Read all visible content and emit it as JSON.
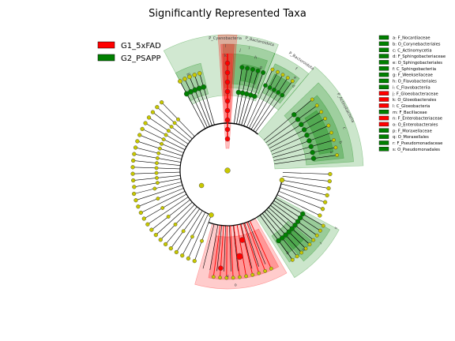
{
  "title": "Significantly Represented Taxa",
  "colors": {
    "red": "#ff0000",
    "green": "#008000",
    "neutral_node": "#c8c800",
    "branch": "#000000"
  },
  "group_legend": [
    {
      "label": "G1_5xFAD",
      "color": "#ff0000"
    },
    {
      "label": "G2_PSAPP",
      "color": "#008000"
    }
  ],
  "taxa_legend": [
    {
      "text": "a: F_Nocardiaceae",
      "color": "#008000"
    },
    {
      "text": "b: O_Corynebacteriales",
      "color": "#008000"
    },
    {
      "text": "c: C_Actinomycetia",
      "color": "#008000"
    },
    {
      "text": "d: F_Sphingobacteriaceae",
      "color": "#008000"
    },
    {
      "text": "e: O_Sphingobacteriales",
      "color": "#008000"
    },
    {
      "text": "f: C_Sphingobacteriia",
      "color": "#008000"
    },
    {
      "text": "g: F_Weeksellaceae",
      "color": "#008000"
    },
    {
      "text": "h: O_Flavobacteriales",
      "color": "#008000"
    },
    {
      "text": "i: C_Flavobacteriia",
      "color": "#008000"
    },
    {
      "text": "j: F_Gloeobacteraceae",
      "color": "#ff0000"
    },
    {
      "text": "k: O_Gloeobacterales",
      "color": "#ff0000"
    },
    {
      "text": "l: C_Gloeobacteria",
      "color": "#ff0000"
    },
    {
      "text": "m: F_Bacillaceae",
      "color": "#008000"
    },
    {
      "text": "n: F_Enterobacteriaceae",
      "color": "#ff0000"
    },
    {
      "text": "o: O_Enterobacterales",
      "color": "#ff0000"
    },
    {
      "text": "p: F_Moraxellaceae",
      "color": "#008000"
    },
    {
      "text": "q: O_Moraxellales",
      "color": "#008000"
    },
    {
      "text": "r: F_Pseudomonadaceae",
      "color": "#008000"
    },
    {
      "text": "s: O_Pseudomonadales",
      "color": "#008000"
    }
  ],
  "clade_labels": {
    "cyanobacteria": "P_Cyanobacteria",
    "bacteroidota": "P_Bacteroidota",
    "bacteroidota2": "P_Bacteroidota",
    "actinobacteria": "P_Actinobacteria",
    "m": "m",
    "l": "l",
    "k": "k",
    "j": "j",
    "i": "i",
    "h": "h",
    "g": "g",
    "f": "f",
    "e": "e",
    "d": "d",
    "c": "c",
    "b": "b",
    "a": "a",
    "s": "s",
    "r": "r",
    "q": "q",
    "p": "p",
    "o": "o",
    "n": "n"
  }
}
